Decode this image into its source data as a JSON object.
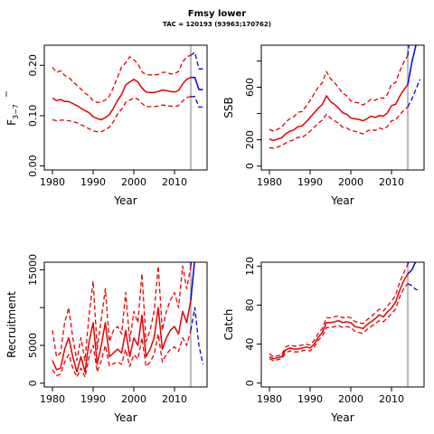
{
  "title": "Fmsy lower",
  "subtitle": "TAC = 120193 (93963;170762)",
  "colors": {
    "hist": "#e60000",
    "proj": "#0000ee",
    "vline": "#bebebe"
  },
  "chart_data": [
    {
      "id": "f",
      "type": "line",
      "xlabel": "Year",
      "ylabel": "F",
      "ylabel_sub": "3−7",
      "xlim": [
        1978,
        2018
      ],
      "ylim": [
        -0.008,
        0.24
      ],
      "xticks": [
        1980,
        1990,
        2000,
        2010
      ],
      "yticks": [
        0.0,
        0.1,
        0.2
      ],
      "ytick_labels": [
        "0.00",
        "0.10",
        "0.20"
      ],
      "vline": 2014,
      "hist": {
        "years": [
          1980,
          1981,
          1982,
          1983,
          1984,
          1985,
          1986,
          1987,
          1988,
          1989,
          1990,
          1991,
          1992,
          1993,
          1994,
          1995,
          1996,
          1997,
          1998,
          1999,
          2000,
          2001,
          2002,
          2003,
          2004,
          2005,
          2006,
          2007,
          2008,
          2009,
          2010,
          2011,
          2012,
          2013,
          2014
        ],
        "mid": [
          0.135,
          0.13,
          0.132,
          0.128,
          0.128,
          0.124,
          0.12,
          0.115,
          0.11,
          0.106,
          0.098,
          0.094,
          0.092,
          0.096,
          0.102,
          0.115,
          0.13,
          0.142,
          0.161,
          0.167,
          0.172,
          0.167,
          0.155,
          0.147,
          0.146,
          0.146,
          0.148,
          0.151,
          0.15,
          0.148,
          0.147,
          0.15,
          0.163,
          0.172,
          0.176
        ],
        "lo": [
          0.092,
          0.09,
          0.091,
          0.091,
          0.09,
          0.088,
          0.086,
          0.082,
          0.078,
          0.074,
          0.07,
          0.068,
          0.068,
          0.072,
          0.077,
          0.088,
          0.103,
          0.113,
          0.126,
          0.131,
          0.135,
          0.133,
          0.124,
          0.118,
          0.118,
          0.118,
          0.119,
          0.121,
          0.12,
          0.119,
          0.118,
          0.12,
          0.129,
          0.136,
          0.138
        ],
        "hi": [
          0.196,
          0.186,
          0.189,
          0.18,
          0.176,
          0.168,
          0.16,
          0.153,
          0.145,
          0.139,
          0.13,
          0.126,
          0.127,
          0.131,
          0.139,
          0.156,
          0.176,
          0.197,
          0.205,
          0.217,
          0.211,
          0.203,
          0.187,
          0.182,
          0.181,
          0.181,
          0.182,
          0.186,
          0.186,
          0.183,
          0.183,
          0.188,
          0.207,
          0.217,
          0.22
        ]
      },
      "proj": {
        "years": [
          2014,
          2015,
          2016,
          2017
        ],
        "mid": [
          0.176,
          0.176,
          0.152,
          0.152
        ],
        "lo": [
          0.138,
          0.138,
          0.117,
          0.117
        ],
        "hi": [
          0.22,
          0.226,
          0.193,
          0.193
        ]
      }
    },
    {
      "id": "ssb",
      "type": "line",
      "xlabel": "Year",
      "ylabel": "SSB",
      "ylabel_sub": "",
      "xlim": [
        1978,
        2018
      ],
      "ylim": [
        -30,
        920
      ],
      "xticks": [
        1980,
        1990,
        2000,
        2010
      ],
      "yticks": [
        0,
        200,
        400,
        600,
        800
      ],
      "ytick_labels": [
        "0",
        "200",
        "",
        "600",
        ""
      ],
      "vline": 2014,
      "hist": {
        "years": [
          1980,
          1981,
          1982,
          1983,
          1984,
          1985,
          1986,
          1987,
          1988,
          1989,
          1990,
          1991,
          1992,
          1993,
          1994,
          1995,
          1996,
          1997,
          1998,
          1999,
          2000,
          2001,
          2002,
          2003,
          2004,
          2005,
          2006,
          2007,
          2008,
          2009,
          2010,
          2011,
          2012,
          2013,
          2014
        ],
        "mid": [
          205,
          195,
          205,
          215,
          245,
          265,
          275,
          300,
          305,
          335,
          370,
          405,
          440,
          470,
          535,
          490,
          470,
          440,
          405,
          395,
          365,
          360,
          355,
          345,
          360,
          380,
          370,
          385,
          380,
          405,
          460,
          470,
          530,
          580,
          620
        ],
        "lo": [
          140,
          135,
          145,
          155,
          175,
          190,
          200,
          220,
          215,
          240,
          265,
          295,
          325,
          350,
          395,
          365,
          345,
          325,
          295,
          290,
          270,
          265,
          255,
          245,
          265,
          280,
          270,
          290,
          280,
          300,
          345,
          350,
          390,
          425,
          450
        ],
        "hi": [
          280,
          265,
          280,
          295,
          335,
          360,
          375,
          410,
          415,
          455,
          500,
          550,
          600,
          635,
          720,
          665,
          635,
          595,
          555,
          535,
          495,
          485,
          480,
          465,
          485,
          510,
          500,
          520,
          515,
          545,
          625,
          635,
          720,
          790,
          840
        ]
      },
      "proj": {
        "years": [
          2014,
          2015,
          2016,
          2017
        ],
        "mid": [
          620,
          790,
          920,
          1000
        ],
        "lo": [
          450,
          510,
          585,
          660
        ],
        "hi": [
          840,
          1100,
          1300,
          1400
        ]
      }
    },
    {
      "id": "rec",
      "type": "line",
      "xlabel": "Year",
      "ylabel": "Recruitment",
      "ylabel_sub": "",
      "xlim": [
        1978,
        2018
      ],
      "ylim": [
        -500,
        16000
      ],
      "xticks": [
        1980,
        1990,
        2000,
        2010
      ],
      "yticks": [
        0,
        5000,
        10000,
        15000
      ],
      "ytick_labels": [
        "0",
        "5000",
        "",
        "15000"
      ],
      "vline": 2014,
      "hist": {
        "years": [
          1980,
          1981,
          1982,
          1983,
          1984,
          1985,
          1986,
          1987,
          1988,
          1989,
          1990,
          1991,
          1992,
          1993,
          1994,
          1995,
          1996,
          1997,
          1998,
          1999,
          2000,
          2001,
          2002,
          2003,
          2004,
          2005,
          2006,
          2007,
          2008,
          2009,
          2010,
          2011,
          2012,
          2013,
          2014
        ],
        "mid": [
          3000,
          1800,
          2000,
          4500,
          6000,
          3500,
          1500,
          3500,
          1500,
          5500,
          8000,
          2500,
          5000,
          8000,
          3500,
          4000,
          4500,
          4000,
          7000,
          3500,
          6000,
          5000,
          9000,
          3500,
          4500,
          6000,
          10000,
          4500,
          6000,
          7000,
          7500,
          6500,
          9500,
          8000,
          11000
        ],
        "lo": [
          1800,
          1000,
          1200,
          2800,
          3800,
          2000,
          800,
          2000,
          800,
          3500,
          5000,
          1500,
          3000,
          5000,
          2300,
          2600,
          2800,
          2500,
          4500,
          2200,
          3800,
          3200,
          6000,
          2200,
          2800,
          3800,
          6500,
          2800,
          3800,
          4500,
          4800,
          4200,
          6000,
          5000,
          7000
        ],
        "hi": [
          7000,
          3500,
          4000,
          8000,
          10000,
          6000,
          3000,
          6000,
          3000,
          9000,
          13500,
          4500,
          8500,
          12500,
          5500,
          7000,
          7500,
          6500,
          12000,
          5500,
          9500,
          8000,
          14500,
          5500,
          7000,
          9500,
          15500,
          7000,
          9500,
          11000,
          12000,
          10000,
          15500,
          12500,
          15500
        ]
      },
      "proj": {
        "years": [
          2014,
          2015,
          2016,
          2017
        ],
        "mid": [
          11000,
          16500,
          17000,
          17000
        ],
        "lo": [
          7000,
          10000,
          5000,
          2500
        ],
        "hi": [
          15500,
          24000,
          24000,
          24000
        ]
      }
    },
    {
      "id": "catch",
      "type": "line",
      "xlabel": "Year",
      "ylabel": "Catch",
      "ylabel_sub": "",
      "xlim": [
        1978,
        2018
      ],
      "ylim": [
        -4,
        124
      ],
      "xticks": [
        1980,
        1990,
        2000,
        2010
      ],
      "yticks": [
        0,
        40,
        80,
        120
      ],
      "ytick_labels": [
        "0",
        "40",
        "80",
        "120"
      ],
      "vline": 2014,
      "hist": {
        "years": [
          1980,
          1981,
          1982,
          1983,
          1984,
          1985,
          1986,
          1987,
          1988,
          1989,
          1990,
          1991,
          1992,
          1993,
          1994,
          1995,
          1996,
          1997,
          1998,
          1999,
          2000,
          2001,
          2002,
          2003,
          2004,
          2005,
          2006,
          2007,
          2008,
          2009,
          2010,
          2011,
          2012,
          2013,
          2014
        ],
        "mid": [
          27,
          25,
          26,
          27,
          34,
          36,
          35,
          35,
          36,
          37,
          36,
          40,
          47,
          52,
          62,
          62,
          63,
          64,
          62,
          63,
          62,
          58,
          57,
          56,
          60,
          63,
          66,
          70,
          68,
          73,
          77,
          83,
          95,
          105,
          112
        ],
        "lo": [
          25,
          23,
          24,
          25,
          31,
          33,
          32,
          32,
          33,
          34,
          33,
          37,
          44,
          48,
          57,
          57,
          58,
          59,
          57,
          58,
          57,
          53,
          52,
          51,
          55,
          58,
          61,
          64,
          63,
          67,
          71,
          76,
          88,
          97,
          102
        ],
        "hi": [
          30,
          27,
          28,
          29,
          37,
          39,
          38,
          38,
          39,
          40,
          39,
          44,
          51,
          56,
          67,
          67,
          68,
          69,
          67,
          68,
          67,
          63,
          62,
          61,
          65,
          68,
          72,
          76,
          74,
          79,
          84,
          90,
          103,
          113,
          122
        ]
      },
      "proj": {
        "years": [
          2014,
          2015,
          2016,
          2017
        ],
        "mid": [
          112,
          116,
          125,
          135
        ],
        "lo": [
          102,
          100,
          96,
          95
        ],
        "hi": [
          122,
          135,
          150,
          160
        ]
      }
    }
  ]
}
